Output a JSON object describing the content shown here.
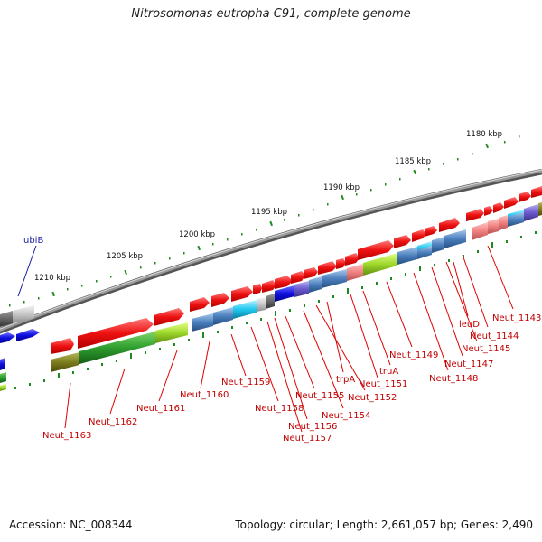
{
  "title": "Nitrosomonas eutropha C91, complete genome",
  "footer": {
    "accession": "Accession: NC_008344",
    "topology": "Topology: circular; Length: 2,661,057 bp; Genes: 2,490"
  },
  "scale_labels": [
    "1180 kbp",
    "1185 kbp",
    "1190 kbp",
    "1195 kbp",
    "1200 kbp",
    "1205 kbp",
    "1210 kbp"
  ],
  "outer_label": "ubiB",
  "gene_labels": [
    "Neut_1143",
    "Neut_1144",
    "leuD",
    "Neut_1145",
    "Neut_1147",
    "Neut_1148",
    "Neut_1149",
    "truA",
    "Neut_1151",
    "trpA",
    "Neut_1152",
    "Neut_1154",
    "Neut_1155",
    "Neut_1156",
    "Neut_1157",
    "Neut_1158",
    "Neut_1159",
    "Neut_1160",
    "Neut_1161",
    "Neut_1162",
    "Neut_1163"
  ],
  "colors": {
    "gene_forward": "#ee1111",
    "label_line": "#dd0000",
    "backbone": "#888888",
    "tick": "#1f8a1f"
  }
}
